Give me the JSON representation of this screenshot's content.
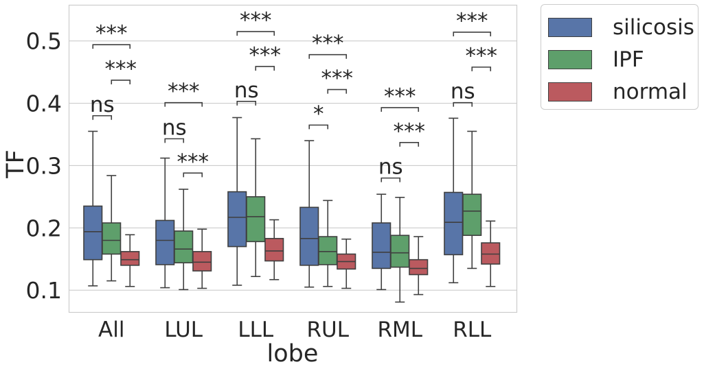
{
  "chart_data": {
    "type": "box",
    "xlabel": "lobe",
    "ylabel": "TF",
    "ylim": [
      0.065,
      0.558
    ],
    "yticks": [
      0.1,
      0.2,
      0.3,
      0.4,
      0.5
    ],
    "ytick_labels": [
      "0.1",
      "0.2",
      "0.3",
      "0.4",
      "0.5"
    ],
    "grid": true,
    "legend_position": "outside-top-right",
    "categories": [
      "All",
      "LUL",
      "LLL",
      "RUL",
      "RML",
      "RLL"
    ],
    "series": [
      {
        "name": "silicosis",
        "color": "#5875a8",
        "boxes": [
          {
            "whisker_low": 0.107,
            "q1": 0.149,
            "median": 0.194,
            "q3": 0.235,
            "whisker_high": 0.355
          },
          {
            "whisker_low": 0.104,
            "q1": 0.141,
            "median": 0.18,
            "q3": 0.212,
            "whisker_high": 0.312
          },
          {
            "whisker_low": 0.108,
            "q1": 0.17,
            "median": 0.217,
            "q3": 0.258,
            "whisker_high": 0.377
          },
          {
            "whisker_low": 0.105,
            "q1": 0.14,
            "median": 0.183,
            "q3": 0.233,
            "whisker_high": 0.34
          },
          {
            "whisker_low": 0.101,
            "q1": 0.135,
            "median": 0.161,
            "q3": 0.208,
            "whisker_high": 0.254
          },
          {
            "whisker_low": 0.112,
            "q1": 0.157,
            "median": 0.209,
            "q3": 0.257,
            "whisker_high": 0.376
          }
        ]
      },
      {
        "name": "IPF",
        "color": "#5e9f6b",
        "boxes": [
          {
            "whisker_low": 0.115,
            "q1": 0.158,
            "median": 0.18,
            "q3": 0.208,
            "whisker_high": 0.284
          },
          {
            "whisker_low": 0.101,
            "q1": 0.144,
            "median": 0.166,
            "q3": 0.195,
            "whisker_high": 0.262
          },
          {
            "whisker_low": 0.122,
            "q1": 0.178,
            "median": 0.218,
            "q3": 0.25,
            "whisker_high": 0.343
          },
          {
            "whisker_low": 0.106,
            "q1": 0.141,
            "median": 0.162,
            "q3": 0.186,
            "whisker_high": 0.244
          },
          {
            "whisker_low": 0.081,
            "q1": 0.137,
            "median": 0.16,
            "q3": 0.188,
            "whisker_high": 0.249
          },
          {
            "whisker_low": 0.135,
            "q1": 0.188,
            "median": 0.227,
            "q3": 0.254,
            "whisker_high": 0.355
          }
        ]
      },
      {
        "name": "normal",
        "color": "#bb5a5f",
        "boxes": [
          {
            "whisker_low": 0.106,
            "q1": 0.14,
            "median": 0.149,
            "q3": 0.162,
            "whisker_high": 0.189
          },
          {
            "whisker_low": 0.103,
            "q1": 0.131,
            "median": 0.145,
            "q3": 0.162,
            "whisker_high": 0.198
          },
          {
            "whisker_low": 0.117,
            "q1": 0.147,
            "median": 0.163,
            "q3": 0.183,
            "whisker_high": 0.213
          },
          {
            "whisker_low": 0.103,
            "q1": 0.134,
            "median": 0.146,
            "q3": 0.158,
            "whisker_high": 0.182
          },
          {
            "whisker_low": 0.093,
            "q1": 0.125,
            "median": 0.135,
            "q3": 0.149,
            "whisker_high": 0.186
          },
          {
            "whisker_low": 0.106,
            "q1": 0.142,
            "median": 0.158,
            "q3": 0.176,
            "whisker_high": 0.211
          }
        ]
      }
    ],
    "annotations": [
      {
        "category": "All",
        "pair": [
          "silicosis",
          "IPF"
        ],
        "label": "ns",
        "y": 0.38
      },
      {
        "category": "All",
        "pair": [
          "IPF",
          "normal"
        ],
        "label": "***",
        "y": 0.437
      },
      {
        "category": "All",
        "pair": [
          "silicosis",
          "normal"
        ],
        "label": "***",
        "y": 0.494
      },
      {
        "category": "LUL",
        "pair": [
          "silicosis",
          "IPF"
        ],
        "label": "ns",
        "y": 0.343
      },
      {
        "category": "LUL",
        "pair": [
          "IPF",
          "normal"
        ],
        "label": "***",
        "y": 0.288
      },
      {
        "category": "LUL",
        "pair": [
          "silicosis",
          "normal"
        ],
        "label": "***",
        "y": 0.401
      },
      {
        "category": "LLL",
        "pair": [
          "silicosis",
          "IPF"
        ],
        "label": "ns",
        "y": 0.403
      },
      {
        "category": "LLL",
        "pair": [
          "IPF",
          "normal"
        ],
        "label": "***",
        "y": 0.459
      },
      {
        "category": "LLL",
        "pair": [
          "silicosis",
          "normal"
        ],
        "label": "***",
        "y": 0.515
      },
      {
        "category": "RUL",
        "pair": [
          "silicosis",
          "IPF"
        ],
        "label": "*",
        "y": 0.365
      },
      {
        "category": "RUL",
        "pair": [
          "IPF",
          "normal"
        ],
        "label": "***",
        "y": 0.422
      },
      {
        "category": "RUL",
        "pair": [
          "silicosis",
          "normal"
        ],
        "label": "***",
        "y": 0.478
      },
      {
        "category": "RML",
        "pair": [
          "silicosis",
          "IPF"
        ],
        "label": "ns",
        "y": 0.28
      },
      {
        "category": "RML",
        "pair": [
          "IPF",
          "normal"
        ],
        "label": "***",
        "y": 0.337
      },
      {
        "category": "RML",
        "pair": [
          "silicosis",
          "normal"
        ],
        "label": "***",
        "y": 0.393
      },
      {
        "category": "RLL",
        "pair": [
          "silicosis",
          "IPF"
        ],
        "label": "ns",
        "y": 0.401
      },
      {
        "category": "RLL",
        "pair": [
          "IPF",
          "normal"
        ],
        "label": "***",
        "y": 0.458
      },
      {
        "category": "RLL",
        "pair": [
          "silicosis",
          "normal"
        ],
        "label": "***",
        "y": 0.514
      }
    ]
  }
}
